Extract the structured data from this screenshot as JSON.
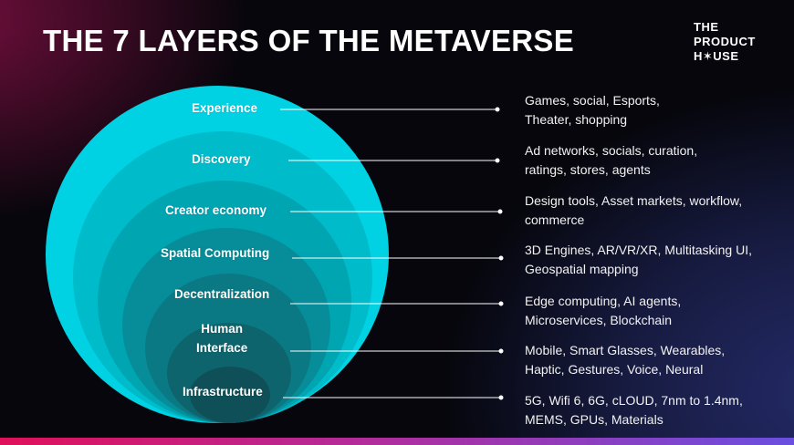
{
  "title": "THE 7 LAYERS OF THE METAVERSE",
  "logo": {
    "line1": "THE",
    "line2": "PRODUCT",
    "line3": "H✶USE"
  },
  "layers": [
    {
      "name": "Experience",
      "desc_line1": "Games, social, Esports,",
      "desc_line2": "Theater, shopping"
    },
    {
      "name": "Discovery",
      "desc_line1": "Ad networks, socials, curation,",
      "desc_line2": "ratings, stores, agents"
    },
    {
      "name": "Creator economy",
      "desc_line1": "Design tools, Asset markets, workflow,",
      "desc_line2": "commerce"
    },
    {
      "name": "Spatial Computing",
      "desc_line1": "3D Engines, AR/VR/XR, Multitasking UI,",
      "desc_line2": "Geospatial mapping"
    },
    {
      "name": "Decentralization",
      "desc_line1": "Edge computing, AI agents,",
      "desc_line2": "Microservices, Blockchain"
    },
    {
      "name_line1": "Human",
      "name_line2": "Interface",
      "desc_line1": "Mobile, Smart Glasses, Wearables,",
      "desc_line2": "Haptic, Gestures, Voice, Neural"
    },
    {
      "name": "Infrastructure",
      "desc_line1": "5G, Wifi 6, 6G, cLOUD, 7nm to 1.4nm,",
      "desc_line2": "MEMS, GPUs, Materials"
    }
  ],
  "colors": {
    "layer1": "#00d2e3",
    "layer2": "#00bccb",
    "layer3": "#00a5b2",
    "layer4": "#068d99",
    "layer5": "#0b7983",
    "layer6": "#0e646d",
    "layer7": "#0f5058",
    "accent_bar_start": "#e0105a",
    "accent_bar_end": "#6a4fe0"
  }
}
